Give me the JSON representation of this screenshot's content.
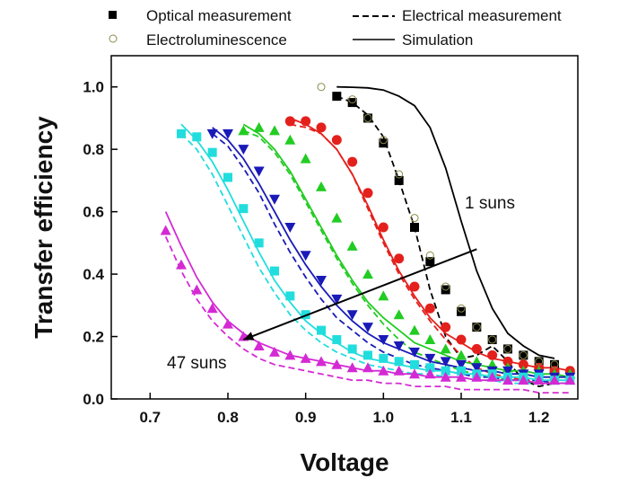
{
  "chart_data": {
    "type": "line",
    "xlabel": "Voltage",
    "ylabel": "Transfer efficiency",
    "xlim": [
      0.65,
      1.25
    ],
    "ylim": [
      0.0,
      1.1
    ],
    "xticks": [
      "0.7",
      "0.8",
      "0.9",
      "1.0",
      "1.1",
      "1.2"
    ],
    "xtick_values": [
      0.7,
      0.8,
      0.9,
      1.0,
      1.1,
      1.2
    ],
    "yticks": [
      "0.0",
      "0.2",
      "0.4",
      "0.6",
      "0.8",
      "1.0"
    ],
    "ytick_values": [
      0.0,
      0.2,
      0.4,
      0.6,
      0.8,
      1.0
    ],
    "grid": false,
    "legend": {
      "placement": "top",
      "entries": [
        {
          "label": "Optical measurement",
          "marker": "square-filled"
        },
        {
          "label": "Electrical measurement",
          "marker": "dashed-line"
        },
        {
          "label": "Electroluminescence",
          "marker": "circle-open"
        },
        {
          "label": "Simulation",
          "marker": "solid-line"
        }
      ]
    },
    "annotations": [
      {
        "text": "1 suns",
        "x": 1.14,
        "y": 0.64
      },
      {
        "text": "47 suns",
        "x": 0.74,
        "y": 0.11
      }
    ],
    "arrow": {
      "from": [
        1.12,
        0.48
      ],
      "to": [
        0.82,
        0.19
      ]
    },
    "electroluminescence": {
      "color": "#8a8a4a",
      "x": [
        0.92,
        0.96,
        0.98,
        1.0,
        1.02,
        1.04,
        1.06,
        1.08,
        1.1,
        1.12,
        1.14,
        1.16,
        1.18,
        1.2,
        1.22
      ],
      "y": [
        1.0,
        0.96,
        0.9,
        0.83,
        0.72,
        0.58,
        0.46,
        0.36,
        0.29,
        0.23,
        0.19,
        0.16,
        0.14,
        0.12,
        0.11
      ]
    },
    "series": [
      {
        "color": "#000000",
        "marker": "square",
        "x": [
          0.94,
          0.96,
          0.98,
          1.0,
          1.02,
          1.04,
          1.06,
          1.08,
          1.1,
          1.12,
          1.14,
          1.16,
          1.18,
          1.2,
          1.22
        ],
        "y": [
          0.97,
          0.95,
          0.9,
          0.82,
          0.7,
          0.55,
          0.44,
          0.35,
          0.28,
          0.23,
          0.19,
          0.16,
          0.14,
          0.12,
          0.11
        ],
        "sim_y": [
          1.0,
          0.999,
          0.997,
          0.99,
          0.97,
          0.94,
          0.87,
          0.74,
          0.57,
          0.41,
          0.29,
          0.21,
          0.17,
          0.14,
          0.13
        ],
        "elec_y": [
          0.97,
          0.95,
          0.91,
          0.84,
          0.7,
          0.55,
          0.35,
          0.2,
          0.13,
          0.14,
          0.17,
          0.12,
          0.06,
          0.04,
          0.05
        ]
      },
      {
        "color": "#e4201c",
        "marker": "circle",
        "x": [
          0.88,
          0.9,
          0.92,
          0.94,
          0.96,
          0.98,
          1.0,
          1.02,
          1.04,
          1.06,
          1.08,
          1.1,
          1.12,
          1.14,
          1.16,
          1.18,
          1.2,
          1.22,
          1.24
        ],
        "y": [
          0.89,
          0.89,
          0.87,
          0.83,
          0.76,
          0.66,
          0.55,
          0.45,
          0.36,
          0.29,
          0.23,
          0.19,
          0.16,
          0.14,
          0.12,
          0.11,
          0.1,
          0.09,
          0.09
        ],
        "sim_y": [
          0.9,
          0.88,
          0.85,
          0.8,
          0.72,
          0.62,
          0.51,
          0.41,
          0.33,
          0.26,
          0.21,
          0.18,
          0.15,
          0.13,
          0.12,
          0.11,
          0.1,
          0.1,
          0.09
        ],
        "elec_y": [
          0.88,
          0.87,
          0.85,
          0.8,
          0.72,
          0.61,
          0.5,
          0.4,
          0.32,
          0.25,
          0.19,
          0.14,
          0.1,
          0.08,
          0.07,
          0.06,
          0.06,
          0.05,
          0.05
        ]
      },
      {
        "color": "#22cc22",
        "marker": "triangle-up",
        "x": [
          0.82,
          0.84,
          0.86,
          0.88,
          0.9,
          0.92,
          0.94,
          0.96,
          0.98,
          1.0,
          1.02,
          1.04,
          1.06,
          1.08,
          1.1,
          1.12,
          1.14,
          1.16,
          1.18,
          1.2,
          1.22,
          1.24
        ],
        "y": [
          0.86,
          0.87,
          0.86,
          0.83,
          0.77,
          0.68,
          0.58,
          0.49,
          0.4,
          0.33,
          0.27,
          0.22,
          0.19,
          0.16,
          0.14,
          0.12,
          0.11,
          0.1,
          0.09,
          0.09,
          0.08,
          0.08
        ],
        "sim_y": [
          0.88,
          0.85,
          0.8,
          0.73,
          0.64,
          0.55,
          0.46,
          0.38,
          0.31,
          0.26,
          0.22,
          0.18,
          0.16,
          0.14,
          0.12,
          0.11,
          0.1,
          0.09,
          0.09,
          0.08,
          0.08,
          0.07
        ],
        "elec_y": [
          0.86,
          0.84,
          0.79,
          0.72,
          0.63,
          0.54,
          0.45,
          0.37,
          0.3,
          0.24,
          0.19,
          0.15,
          0.13,
          0.11,
          0.09,
          0.08,
          0.07,
          0.06,
          0.06,
          0.05,
          0.05,
          0.05
        ]
      },
      {
        "color": "#1a1ab8",
        "marker": "triangle-down",
        "x": [
          0.78,
          0.8,
          0.82,
          0.84,
          0.86,
          0.88,
          0.9,
          0.92,
          0.94,
          0.96,
          0.98,
          1.0,
          1.02,
          1.04,
          1.06,
          1.08,
          1.1,
          1.12,
          1.14,
          1.16,
          1.18,
          1.2,
          1.22,
          1.24
        ],
        "y": [
          0.85,
          0.85,
          0.8,
          0.73,
          0.64,
          0.55,
          0.46,
          0.38,
          0.32,
          0.27,
          0.23,
          0.19,
          0.17,
          0.15,
          0.13,
          0.12,
          0.11,
          0.1,
          0.09,
          0.09,
          0.08,
          0.08,
          0.07,
          0.07
        ],
        "sim_y": [
          0.87,
          0.83,
          0.77,
          0.69,
          0.6,
          0.51,
          0.43,
          0.36,
          0.3,
          0.25,
          0.21,
          0.18,
          0.16,
          0.14,
          0.12,
          0.11,
          0.1,
          0.09,
          0.09,
          0.08,
          0.08,
          0.07,
          0.07,
          0.07
        ],
        "elec_y": [
          0.85,
          0.81,
          0.74,
          0.66,
          0.56,
          0.47,
          0.39,
          0.32,
          0.26,
          0.22,
          0.18,
          0.15,
          0.13,
          0.11,
          0.1,
          0.09,
          0.08,
          0.07,
          0.07,
          0.06,
          0.06,
          0.06,
          0.05,
          0.05
        ]
      },
      {
        "color": "#22dddd",
        "marker": "square",
        "x": [
          0.74,
          0.76,
          0.78,
          0.8,
          0.82,
          0.84,
          0.86,
          0.88,
          0.9,
          0.92,
          0.94,
          0.96,
          0.98,
          1.0,
          1.02,
          1.04,
          1.06,
          1.08,
          1.1,
          1.12,
          1.14,
          1.16,
          1.18,
          1.2,
          1.22,
          1.24
        ],
        "y": [
          0.85,
          0.84,
          0.79,
          0.71,
          0.61,
          0.5,
          0.41,
          0.33,
          0.27,
          0.22,
          0.19,
          0.16,
          0.14,
          0.13,
          0.12,
          0.11,
          0.1,
          0.09,
          0.09,
          0.08,
          0.08,
          0.07,
          0.07,
          0.07,
          0.06,
          0.06
        ],
        "sim_y": [
          0.88,
          0.83,
          0.76,
          0.67,
          0.57,
          0.47,
          0.38,
          0.31,
          0.25,
          0.21,
          0.18,
          0.15,
          0.13,
          0.12,
          0.11,
          0.1,
          0.09,
          0.09,
          0.08,
          0.08,
          0.07,
          0.07,
          0.07,
          0.06,
          0.06,
          0.06
        ],
        "elec_y": [
          0.85,
          0.8,
          0.72,
          0.62,
          0.52,
          0.42,
          0.34,
          0.27,
          0.22,
          0.18,
          0.15,
          0.13,
          0.11,
          0.1,
          0.09,
          0.08,
          0.08,
          0.07,
          0.07,
          0.06,
          0.06,
          0.05,
          0.05,
          0.05,
          0.05,
          0.05
        ]
      },
      {
        "color": "#d42ad4",
        "marker": "triangle-up",
        "x": [
          0.72,
          0.74,
          0.76,
          0.78,
          0.8,
          0.82,
          0.84,
          0.86,
          0.88,
          0.9,
          0.92,
          0.94,
          0.96,
          0.98,
          1.0,
          1.02,
          1.04,
          1.06,
          1.08,
          1.1,
          1.12,
          1.14,
          1.16,
          1.18,
          1.2,
          1.22,
          1.24
        ],
        "y": [
          0.54,
          0.43,
          0.35,
          0.29,
          0.24,
          0.2,
          0.17,
          0.15,
          0.14,
          0.13,
          0.12,
          0.11,
          0.1,
          0.1,
          0.09,
          0.09,
          0.08,
          0.08,
          0.07,
          0.07,
          0.07,
          0.07,
          0.06,
          0.06,
          0.06,
          0.06,
          0.06
        ],
        "sim_y": [
          0.6,
          0.49,
          0.39,
          0.31,
          0.25,
          0.21,
          0.18,
          0.16,
          0.14,
          0.13,
          0.12,
          0.11,
          0.1,
          0.09,
          0.09,
          0.08,
          0.08,
          0.07,
          0.07,
          0.07,
          0.06,
          0.06,
          0.06,
          0.06,
          0.05,
          0.05,
          0.05
        ],
        "elec_y": [
          0.52,
          0.41,
          0.32,
          0.25,
          0.2,
          0.16,
          0.13,
          0.11,
          0.1,
          0.09,
          0.08,
          0.07,
          0.06,
          0.06,
          0.05,
          0.05,
          0.04,
          0.04,
          0.04,
          0.03,
          0.03,
          0.03,
          0.03,
          0.03,
          0.02,
          0.02,
          0.02
        ]
      }
    ]
  }
}
